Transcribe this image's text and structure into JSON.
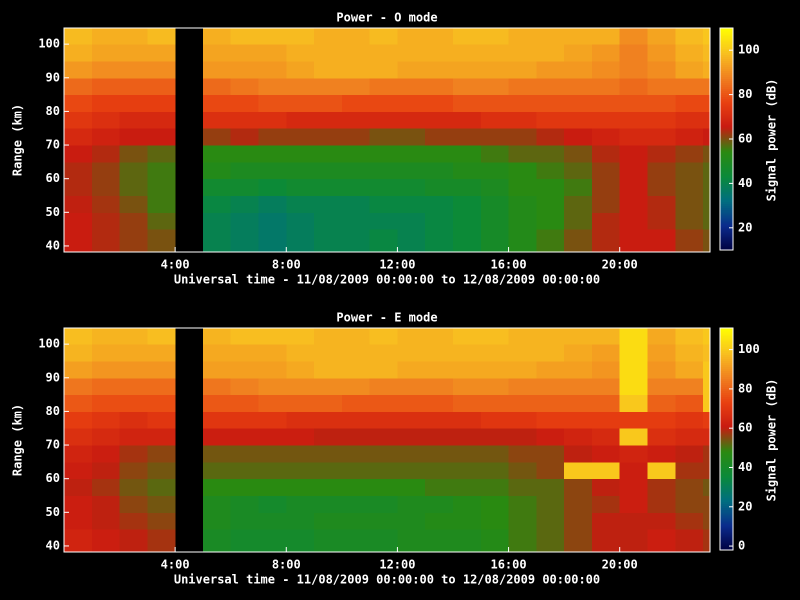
{
  "chart_data": [
    {
      "type": "heatmap",
      "title": "Power - O mode",
      "x_label": "Universal time - 11/08/2009 00:00:00 to 12/08/2009 00:00:00",
      "y_label": "Range (km)",
      "colorbar_label": "Signal power (dB)",
      "xlim": [
        0,
        23.25
      ],
      "ylim": [
        38.2,
        104.8
      ],
      "zlim": [
        10,
        110
      ],
      "xticks": [
        {
          "value": 4,
          "label": "4:00"
        },
        {
          "value": 8,
          "label": "8:00"
        },
        {
          "value": 12,
          "label": "12:00"
        },
        {
          "value": 16,
          "label": "16:00"
        },
        {
          "value": 20,
          "label": "20:00"
        }
      ],
      "yticks": [
        40,
        50,
        60,
        70,
        80,
        90,
        100
      ],
      "zticks": [
        20,
        40,
        60,
        80,
        100
      ],
      "colorscale": [
        "#000040",
        "#0a2a8c",
        "#006e80",
        "#0a8a3a",
        "#2a8a10",
        "#c81a10",
        "#e84010",
        "#f08020",
        "#f8c020",
        "#ffff00"
      ],
      "x_bins": [
        0,
        1,
        2,
        3,
        4,
        5,
        6,
        7,
        8,
        9,
        10,
        11,
        12,
        13,
        14,
        15,
        16,
        17,
        18,
        19,
        20,
        21,
        22,
        23,
        23.25
      ],
      "y_bins": [
        38.2,
        45,
        50,
        55,
        60,
        65,
        70,
        75,
        80,
        85,
        90,
        95,
        100,
        104.8
      ],
      "values": [
        [
          66,
          64,
          62,
          60,
          null,
          40,
          38,
          36,
          38,
          40,
          40,
          42,
          40,
          42,
          44,
          48,
          52,
          56,
          60,
          64,
          66,
          66,
          62,
          60
        ],
        [
          66,
          64,
          62,
          58,
          null,
          40,
          38,
          36,
          38,
          40,
          40,
          40,
          40,
          42,
          44,
          48,
          52,
          54,
          58,
          64,
          66,
          64,
          60,
          58
        ],
        [
          65,
          63,
          60,
          56,
          null,
          42,
          40,
          38,
          40,
          40,
          40,
          42,
          42,
          42,
          44,
          48,
          52,
          54,
          58,
          62,
          66,
          64,
          60,
          58
        ],
        [
          64,
          62,
          58,
          56,
          null,
          46,
          46,
          44,
          46,
          46,
          46,
          46,
          46,
          48,
          48,
          50,
          54,
          54,
          56,
          62,
          66,
          62,
          60,
          58
        ],
        [
          64,
          62,
          58,
          56,
          null,
          52,
          50,
          50,
          50,
          50,
          50,
          50,
          50,
          50,
          52,
          52,
          54,
          56,
          58,
          62,
          66,
          62,
          60,
          58
        ],
        [
          66,
          64,
          60,
          58,
          null,
          54,
          54,
          54,
          54,
          54,
          54,
          54,
          54,
          54,
          54,
          56,
          58,
          58,
          60,
          64,
          66,
          64,
          62,
          60
        ],
        [
          70,
          68,
          66,
          66,
          null,
          62,
          64,
          62,
          62,
          62,
          62,
          60,
          60,
          62,
          62,
          62,
          62,
          64,
          66,
          68,
          70,
          70,
          68,
          66
        ],
        [
          74,
          72,
          70,
          70,
          null,
          72,
          72,
          72,
          70,
          70,
          70,
          70,
          70,
          70,
          70,
          72,
          72,
          74,
          74,
          74,
          74,
          74,
          72,
          72
        ],
        [
          78,
          76,
          76,
          76,
          null,
          78,
          78,
          80,
          80,
          80,
          78,
          78,
          78,
          78,
          80,
          80,
          80,
          80,
          80,
          80,
          80,
          80,
          78,
          78
        ],
        [
          84,
          82,
          82,
          82,
          null,
          84,
          86,
          88,
          88,
          88,
          88,
          86,
          86,
          86,
          88,
          88,
          86,
          86,
          86,
          86,
          84,
          86,
          86,
          86
        ],
        [
          92,
          90,
          90,
          90,
          null,
          92,
          92,
          92,
          94,
          96,
          96,
          96,
          94,
          94,
          94,
          94,
          94,
          92,
          92,
          90,
          88,
          90,
          94,
          96
        ],
        [
          96,
          94,
          94,
          94,
          null,
          94,
          94,
          94,
          96,
          96,
          96,
          96,
          96,
          96,
          96,
          96,
          96,
          96,
          94,
          92,
          88,
          92,
          96,
          98
        ],
        [
          98,
          96,
          96,
          98,
          null,
          96,
          98,
          98,
          98,
          96,
          96,
          98,
          96,
          96,
          98,
          98,
          96,
          96,
          96,
          96,
          90,
          94,
          98,
          100
        ]
      ]
    },
    {
      "type": "heatmap",
      "title": "Power - E mode",
      "x_label": "Universal time - 11/08/2009 00:00:00 to 12/08/2009 00:00:00",
      "y_label": "Range (km)",
      "colorbar_label": "Signal power (dB)",
      "xlim": [
        0,
        23.25
      ],
      "ylim": [
        38.2,
        104.8
      ],
      "zlim": [
        -2,
        111
      ],
      "xticks": [
        {
          "value": 4,
          "label": "4:00"
        },
        {
          "value": 8,
          "label": "8:00"
        },
        {
          "value": 12,
          "label": "12:00"
        },
        {
          "value": 16,
          "label": "16:00"
        },
        {
          "value": 20,
          "label": "20:00"
        }
      ],
      "yticks": [
        40,
        50,
        60,
        70,
        80,
        90,
        100
      ],
      "zticks": [
        0,
        20,
        40,
        60,
        80,
        100
      ],
      "colorscale": [
        "#000040",
        "#0a2a8c",
        "#006e80",
        "#0a8a3a",
        "#2a8a10",
        "#c81a10",
        "#e84010",
        "#f08020",
        "#f8c020",
        "#ffff00"
      ],
      "x_bins": [
        0,
        1,
        2,
        3,
        4,
        5,
        6,
        7,
        8,
        9,
        10,
        11,
        12,
        13,
        14,
        15,
        16,
        17,
        18,
        19,
        20,
        21,
        22,
        23,
        23.25
      ],
      "y_bins": [
        38.2,
        45,
        50,
        55,
        60,
        65,
        70,
        75,
        80,
        85,
        90,
        95,
        100,
        104.8
      ],
      "values": [
        [
          64,
          62,
          60,
          58,
          null,
          42,
          40,
          40,
          40,
          42,
          42,
          42,
          44,
          44,
          44,
          46,
          50,
          52,
          56,
          60,
          60,
          62,
          60,
          58
        ],
        [
          62,
          60,
          58,
          56,
          null,
          44,
          42,
          42,
          42,
          44,
          44,
          44,
          44,
          46,
          46,
          48,
          50,
          52,
          56,
          60,
          60,
          60,
          58,
          56
        ],
        [
          62,
          60,
          56,
          54,
          null,
          44,
          42,
          40,
          42,
          42,
          42,
          42,
          44,
          44,
          46,
          48,
          50,
          52,
          56,
          58,
          62,
          58,
          56,
          56
        ],
        [
          60,
          58,
          54,
          52,
          null,
          48,
          48,
          48,
          48,
          48,
          48,
          48,
          48,
          50,
          50,
          50,
          52,
          52,
          56,
          60,
          62,
          58,
          56,
          54
        ],
        [
          62,
          60,
          56,
          54,
          null,
          52,
          52,
          52,
          52,
          52,
          52,
          52,
          52,
          52,
          52,
          52,
          54,
          56,
          100,
          100,
          62,
          100,
          58,
          58
        ],
        [
          64,
          62,
          58,
          56,
          null,
          54,
          54,
          54,
          54,
          54,
          54,
          54,
          54,
          54,
          54,
          54,
          56,
          56,
          60,
          62,
          64,
          62,
          60,
          58
        ],
        [
          68,
          66,
          64,
          64,
          null,
          62,
          62,
          62,
          62,
          60,
          60,
          60,
          60,
          60,
          60,
          60,
          60,
          62,
          64,
          66,
          100,
          68,
          66,
          66
        ],
        [
          72,
          70,
          68,
          70,
          null,
          70,
          70,
          70,
          68,
          68,
          68,
          68,
          68,
          68,
          68,
          70,
          70,
          72,
          72,
          72,
          72,
          72,
          70,
          72
        ],
        [
          78,
          76,
          76,
          76,
          null,
          78,
          78,
          80,
          80,
          80,
          78,
          78,
          78,
          78,
          80,
          80,
          80,
          80,
          80,
          80,
          100,
          80,
          78,
          100
        ],
        [
          84,
          82,
          82,
          82,
          null,
          84,
          86,
          88,
          88,
          88,
          88,
          86,
          86,
          86,
          88,
          88,
          86,
          86,
          86,
          86,
          104,
          86,
          86,
          100
        ],
        [
          92,
          90,
          90,
          90,
          null,
          92,
          92,
          92,
          94,
          96,
          96,
          96,
          94,
          94,
          94,
          94,
          94,
          92,
          92,
          90,
          104,
          90,
          94,
          100
        ],
        [
          96,
          94,
          94,
          94,
          null,
          94,
          94,
          94,
          96,
          96,
          96,
          96,
          96,
          96,
          96,
          96,
          96,
          96,
          94,
          92,
          104,
          92,
          96,
          98
        ],
        [
          98,
          96,
          96,
          98,
          null,
          96,
          98,
          98,
          98,
          96,
          96,
          98,
          96,
          96,
          98,
          98,
          96,
          96,
          96,
          96,
          104,
          94,
          98,
          100
        ]
      ]
    }
  ]
}
